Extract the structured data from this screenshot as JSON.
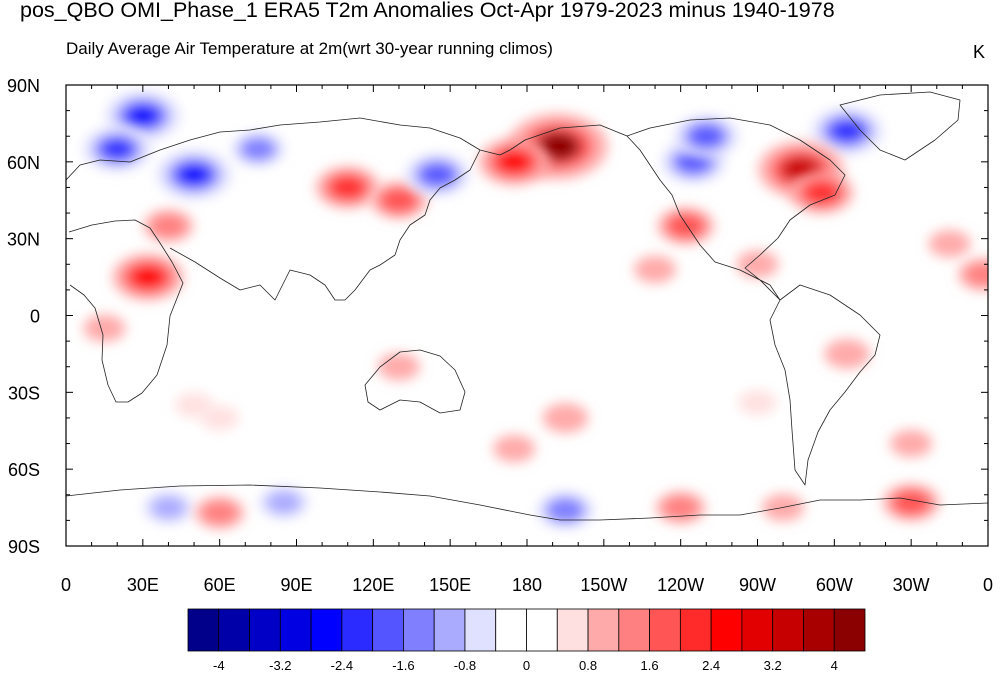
{
  "chart_data": {
    "type": "heatmap",
    "title": "pos_QBO OMI_Phase_1 ERA5 T2m Anomalies Oct-Apr 1979-2023 minus 1940-1978",
    "subtitle_left": "Daily Average Air Temperature at 2m",
    "subtitle_mid": "(wrt 30-year running climos)",
    "units": "K",
    "projection": "cylindrical-equidistant",
    "center_longitude": 180,
    "xlim": [
      0,
      360
    ],
    "ylim": [
      -90,
      90
    ],
    "x_tick_labels": [
      "0",
      "30E",
      "60E",
      "90E",
      "120E",
      "150E",
      "180",
      "150W",
      "120W",
      "90W",
      "60W",
      "30W",
      "0"
    ],
    "y_tick_labels": [
      "90N",
      "60N",
      "30N",
      "0",
      "30S",
      "60S",
      "90S"
    ],
    "colorbar": {
      "orientation": "horizontal",
      "placement": "bottom",
      "levels": [
        -4,
        -3.6,
        -3.2,
        -2.8,
        -2.4,
        -2,
        -1.6,
        -1.2,
        -0.8,
        -0.4,
        0,
        0.4,
        0.8,
        1.2,
        1.6,
        2,
        2.4,
        2.8,
        3.2,
        3.6,
        4
      ],
      "labels": [
        "-4",
        "-3.2",
        "-2.4",
        "-1.6",
        "-0.8",
        "0",
        "0.8",
        "1.6",
        "2.4",
        "3.2",
        "4"
      ],
      "colors": [
        "#00008b",
        "#0000a8",
        "#0000c6",
        "#0000e2",
        "#0000ff",
        "#2b2bff",
        "#5555ff",
        "#8080ff",
        "#aaaaff",
        "#e0e0ff",
        "#ffffff",
        "#ffffff",
        "#ffe0e0",
        "#ffaaaa",
        "#ff8080",
        "#ff5555",
        "#ff2b2b",
        "#ff0000",
        "#e20000",
        "#c60000",
        "#a80000",
        "#8b0000"
      ]
    },
    "anomaly_features": [
      {
        "lon": 30,
        "lat": 78,
        "value": -2.6
      },
      {
        "lon": 20,
        "lat": 65,
        "value": -2.2
      },
      {
        "lon": 50,
        "lat": 55,
        "value": -2.6
      },
      {
        "lon": 75,
        "lat": 65,
        "value": -1.4
      },
      {
        "lon": 110,
        "lat": 50,
        "value": 2.0
      },
      {
        "lon": 130,
        "lat": 45,
        "value": 1.6
      },
      {
        "lon": 145,
        "lat": 55,
        "value": -2.0
      },
      {
        "lon": 192,
        "lat": 66,
        "value": 4.0
      },
      {
        "lon": 175,
        "lat": 60,
        "value": 2.4
      },
      {
        "lon": 245,
        "lat": 60,
        "value": -2.0
      },
      {
        "lon": 250,
        "lat": 70,
        "value": -2.0
      },
      {
        "lon": 305,
        "lat": 72,
        "value": -2.4
      },
      {
        "lon": 287,
        "lat": 57,
        "value": 3.2
      },
      {
        "lon": 295,
        "lat": 48,
        "value": 2.0
      },
      {
        "lon": 242,
        "lat": 35,
        "value": 1.6
      },
      {
        "lon": 230,
        "lat": 18,
        "value": 0.8
      },
      {
        "lon": 270,
        "lat": 20,
        "value": 0.8
      },
      {
        "lon": 345,
        "lat": 28,
        "value": 0.8
      },
      {
        "lon": 358,
        "lat": 16,
        "value": 1.2
      },
      {
        "lon": 32,
        "lat": 15,
        "value": 2.4
      },
      {
        "lon": 40,
        "lat": 35,
        "value": 1.2
      },
      {
        "lon": 15,
        "lat": -5,
        "value": 0.8
      },
      {
        "lon": 130,
        "lat": -20,
        "value": 0.8
      },
      {
        "lon": 50,
        "lat": -35,
        "value": 0.6
      },
      {
        "lon": 60,
        "lat": -40,
        "value": 0.6
      },
      {
        "lon": 195,
        "lat": -40,
        "value": 1.0
      },
      {
        "lon": 175,
        "lat": -52,
        "value": 0.8
      },
      {
        "lon": 270,
        "lat": -34,
        "value": 0.6
      },
      {
        "lon": 305,
        "lat": -15,
        "value": 1.0
      },
      {
        "lon": 330,
        "lat": -50,
        "value": 0.8
      },
      {
        "lon": 40,
        "lat": -75,
        "value": -1.2
      },
      {
        "lon": 85,
        "lat": -73,
        "value": -1.2
      },
      {
        "lon": 195,
        "lat": -76,
        "value": -1.6
      },
      {
        "lon": 60,
        "lat": -77,
        "value": 1.2
      },
      {
        "lon": 240,
        "lat": -75,
        "value": 1.2
      },
      {
        "lon": 330,
        "lat": -73,
        "value": 1.6
      },
      {
        "lon": 280,
        "lat": -75,
        "value": 0.8
      }
    ]
  }
}
